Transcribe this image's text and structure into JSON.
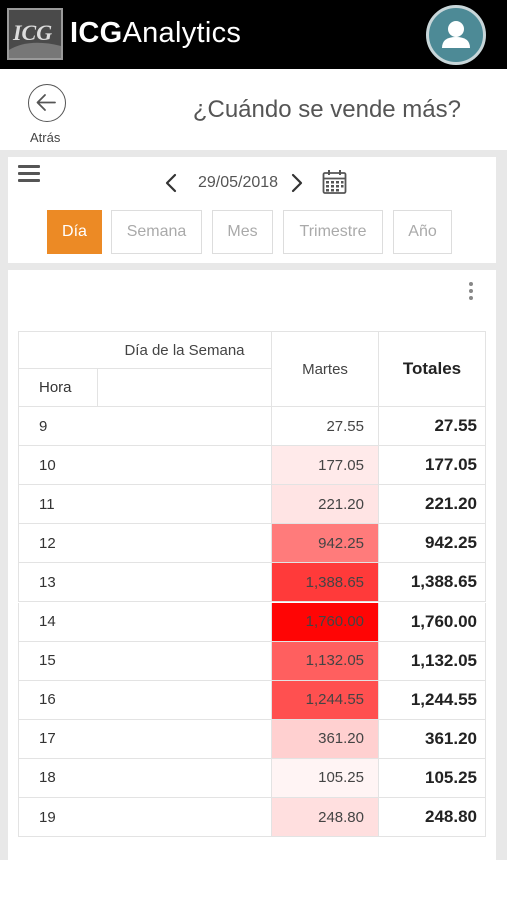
{
  "app": {
    "brand_bold": "ICG",
    "brand_light": "Analytics",
    "logo_text": "ICG"
  },
  "header": {
    "back_label": "Atrás",
    "title": "¿Cuándo se vende más?"
  },
  "date_nav": {
    "date": "29/05/2018"
  },
  "periods": [
    {
      "label": "Día",
      "active": true
    },
    {
      "label": "Semana",
      "active": false
    },
    {
      "label": "Mes",
      "active": false
    },
    {
      "label": "Trimestre",
      "active": false
    },
    {
      "label": "Año",
      "active": false
    }
  ],
  "table": {
    "dimension_header": "Día de la Semana",
    "row_header": "Hora",
    "column_header": "Martes",
    "totals_header": "Totales",
    "rows": [
      {
        "hour": "9",
        "value": "27.55",
        "total": "27.55",
        "heat": 0.0
      },
      {
        "hour": "10",
        "value": "177.05",
        "total": "177.05",
        "heat": 0.085
      },
      {
        "hour": "11",
        "value": "221.20",
        "total": "221.20",
        "heat": 0.11
      },
      {
        "hour": "12",
        "value": "942.25",
        "total": "942.25",
        "heat": 0.53
      },
      {
        "hour": "13",
        "value": "1,388.65",
        "total": "1,388.65",
        "heat": 0.79
      },
      {
        "hour": "14",
        "value": "1,760.00",
        "total": "1,760.00",
        "heat": 1.0
      },
      {
        "hour": "15",
        "value": "1,132.05",
        "total": "1,132.05",
        "heat": 0.64
      },
      {
        "hour": "16",
        "value": "1,244.55",
        "total": "1,244.55",
        "heat": 0.7
      },
      {
        "hour": "17",
        "value": "361.20",
        "total": "361.20",
        "heat": 0.19
      },
      {
        "hour": "18",
        "value": "105.25",
        "total": "105.25",
        "heat": 0.045
      },
      {
        "hour": "19",
        "value": "248.80",
        "total": "248.80",
        "heat": 0.13
      }
    ]
  },
  "colors": {
    "accent": "#ec8a25",
    "heat_max": "#ff0000",
    "topbar": "#000000"
  },
  "icons": [
    "menu-icon",
    "chevron-left-icon",
    "chevron-right-icon",
    "calendar-icon",
    "kebab-icon",
    "back-arrow-icon",
    "avatar-icon"
  ]
}
